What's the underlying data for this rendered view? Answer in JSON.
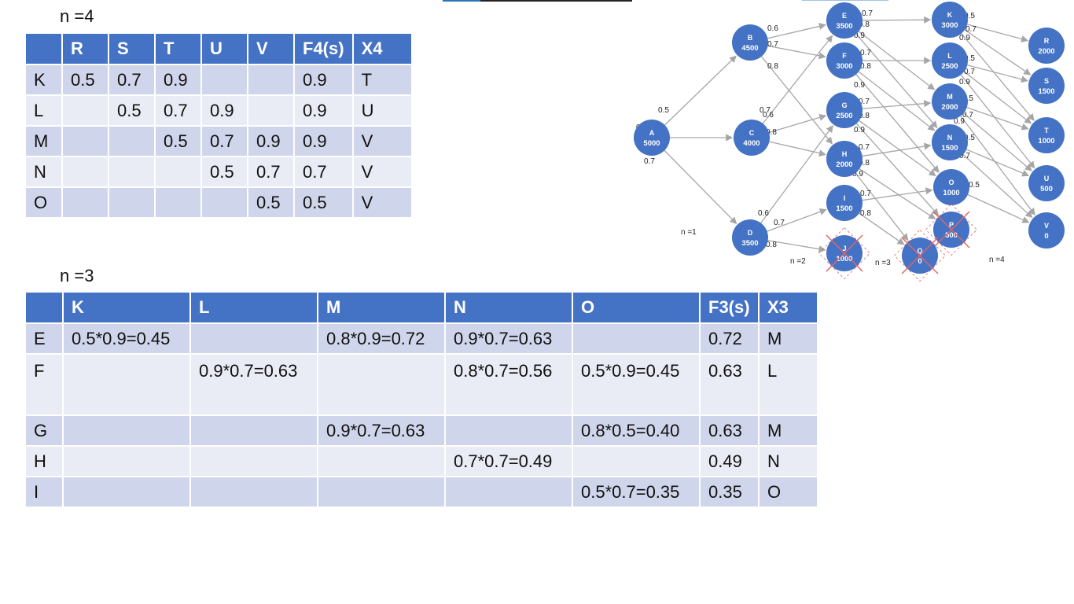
{
  "stage4": {
    "label": "n =4",
    "headers": [
      "",
      "R",
      "S",
      "T",
      "U",
      "V",
      "F4(s)",
      "X4"
    ],
    "rows": [
      [
        "K",
        "0.5",
        "0.7",
        "0.9",
        "",
        "",
        "0.9",
        "T"
      ],
      [
        "L",
        "",
        "0.5",
        "0.7",
        "0.9",
        "",
        "0.9",
        "U"
      ],
      [
        "M",
        "",
        "",
        "0.5",
        "0.7",
        "0.9",
        "0.9",
        "V"
      ],
      [
        "N",
        "",
        "",
        "",
        "0.5",
        "0.7",
        "0.7",
        "V"
      ],
      [
        "O",
        "",
        "",
        "",
        "",
        "0.5",
        "0.5",
        "V"
      ]
    ]
  },
  "stage3": {
    "label": "n =3",
    "headers": [
      "",
      "K",
      "L",
      "M",
      "N",
      "O",
      "F3(s)",
      "X3"
    ],
    "rows": [
      [
        "E",
        "0.5*0.9=0.45",
        "",
        "0.8*0.9=0.72",
        "0.9*0.7=0.63",
        "",
        "0.72",
        "M"
      ],
      [
        "F",
        "",
        "0.9*0.7=0.63",
        "",
        "0.8*0.7=0.56",
        "0.5*0.9=0.45",
        "0.63",
        "L"
      ],
      [
        "G",
        "",
        "",
        "0.9*0.7=0.63",
        "",
        "0.8*0.5=0.40",
        "0.63",
        "M"
      ],
      [
        "H",
        "",
        "",
        "",
        "0.7*0.7=0.49",
        "",
        "0.49",
        "N"
      ],
      [
        "I",
        "",
        "",
        "",
        "",
        "0.5*0.7=0.35",
        "0.35",
        "O"
      ]
    ]
  },
  "graph": {
    "colors": {
      "node": "#4472C4",
      "edge": "#A6A6A6",
      "cross": "#E06666",
      "topbar_blue": "#2E75B6"
    },
    "stage_labels": [
      "n =1",
      "n =2",
      "n =3",
      "n =4"
    ],
    "nodes": [
      {
        "id": "A",
        "value": "5000"
      },
      {
        "id": "B",
        "value": "4500"
      },
      {
        "id": "C",
        "value": "4000"
      },
      {
        "id": "D",
        "value": "3500"
      },
      {
        "id": "E",
        "value": "3500"
      },
      {
        "id": "F",
        "value": "3000"
      },
      {
        "id": "G",
        "value": "2500"
      },
      {
        "id": "H",
        "value": "2000"
      },
      {
        "id": "I",
        "value": "1500"
      },
      {
        "id": "J",
        "value": "1000",
        "crossed": true
      },
      {
        "id": "K",
        "value": "3000"
      },
      {
        "id": "L",
        "value": "2500"
      },
      {
        "id": "M",
        "value": "2000"
      },
      {
        "id": "N",
        "value": "1500"
      },
      {
        "id": "O",
        "value": "1000"
      },
      {
        "id": "P",
        "value": "500",
        "crossed": true
      },
      {
        "id": "Q",
        "value": "0",
        "crossed": true
      },
      {
        "id": "R",
        "value": "2000"
      },
      {
        "id": "S",
        "value": "1500"
      },
      {
        "id": "T",
        "value": "1000"
      },
      {
        "id": "U",
        "value": "500"
      },
      {
        "id": "V",
        "value": "0"
      }
    ],
    "edge_labels": [
      "0.5",
      "0.6",
      "0.7",
      "0.6",
      "0.7",
      "0.8",
      "0.6",
      "0.7",
      "0.8",
      "0.6",
      "0.7",
      "0.8",
      "0.7",
      "0.8",
      "0.9",
      "0.7",
      "0.8",
      "0.9",
      "0.7",
      "0.8",
      "0.9",
      "0.7",
      "0.8",
      "0.9",
      "0.7",
      "0.8",
      "0.5",
      "0.7",
      "0.9",
      "0.5",
      "0.7",
      "0.9",
      "0.5",
      "0.7",
      "0.9",
      "0.5",
      "0.7",
      "0.5"
    ]
  }
}
